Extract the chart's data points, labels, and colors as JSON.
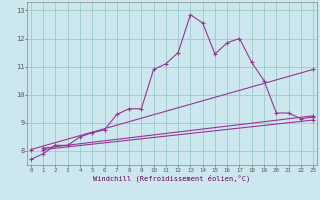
{
  "xlabel": "Windchill (Refroidissement éolien,°C)",
  "bg_color": "#cce8ee",
  "line_color": "#993399",
  "grid_color": "#99cccc",
  "x_ticks": [
    0,
    1,
    2,
    3,
    4,
    5,
    6,
    7,
    8,
    9,
    10,
    11,
    12,
    13,
    14,
    15,
    16,
    17,
    18,
    19,
    20,
    21,
    22,
    23
  ],
  "y_ticks": [
    8,
    9,
    10,
    11,
    12,
    13
  ],
  "xlim": [
    -0.3,
    23.3
  ],
  "ylim": [
    7.5,
    13.3
  ],
  "line1_x": [
    0,
    1,
    2,
    3,
    4,
    5,
    6,
    7,
    8,
    9,
    10,
    11,
    12,
    13,
    14,
    15,
    16,
    17,
    18,
    19,
    20,
    21,
    22,
    23
  ],
  "line1_y": [
    7.7,
    7.9,
    8.2,
    8.2,
    8.5,
    8.65,
    8.75,
    9.3,
    9.5,
    9.5,
    10.9,
    11.1,
    11.5,
    12.85,
    12.55,
    11.45,
    11.85,
    12.0,
    11.15,
    10.5,
    9.35,
    9.35,
    9.15,
    9.2
  ],
  "line2_x": [
    0,
    23
  ],
  "line2_y": [
    8.05,
    10.9
  ],
  "line3_x": [
    1,
    23
  ],
  "line3_y": [
    8.1,
    9.25
  ],
  "line4_x": [
    1,
    23
  ],
  "line4_y": [
    8.05,
    9.1
  ],
  "marker": "+"
}
